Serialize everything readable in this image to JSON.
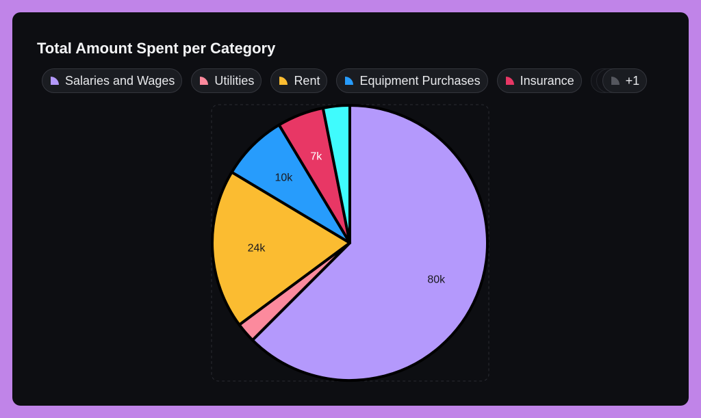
{
  "chart_data": {
    "type": "pie",
    "title": "Total Amount Spent per Category",
    "slices": [
      {
        "name": "Salaries and Wages",
        "value": 80000,
        "label": "80k",
        "color": "#b499fc"
      },
      {
        "name": "Utilities",
        "value": 3000,
        "label": "",
        "color": "#fc8a9d"
      },
      {
        "name": "Rent",
        "value": 24000,
        "label": "24k",
        "color": "#fbbc31"
      },
      {
        "name": "Equipment Purchases",
        "value": 10000,
        "label": "10k",
        "color": "#279cfc"
      },
      {
        "name": "Insurance",
        "value": 7000,
        "label": "7k",
        "color": "#e83765"
      },
      {
        "name": "",
        "value": 4000,
        "label": "",
        "color": "#3ffbfd"
      }
    ],
    "start_angle": "top",
    "direction": "clockwise"
  },
  "legend": {
    "items": [
      {
        "label": "Salaries and Wages",
        "color": "#b499fc"
      },
      {
        "label": "Utilities",
        "color": "#fc8a9d"
      },
      {
        "label": "Rent",
        "color": "#fbbc31"
      },
      {
        "label": "Equipment Purchases",
        "color": "#279cfc"
      },
      {
        "label": "Insurance",
        "color": "#e83765"
      }
    ],
    "more_label": "+1",
    "more_color": "#55575e",
    "placement": "top"
  }
}
